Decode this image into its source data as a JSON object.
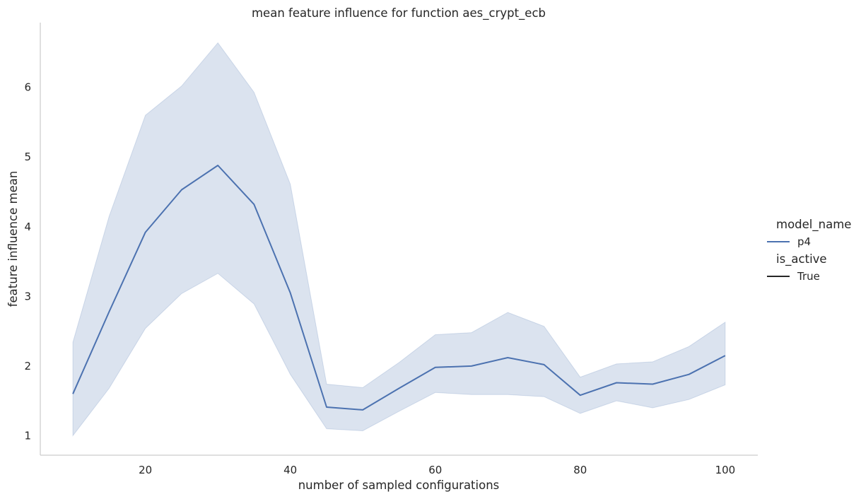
{
  "chart_data": {
    "type": "line",
    "title": "mean feature influence for function aes_crypt_ecb",
    "xlabel": "number of sampled configurations",
    "ylabel": "feature influence mean",
    "xlim": [
      5.5,
      104.5
    ],
    "ylim": [
      0.72,
      6.93
    ],
    "xticks": [
      20,
      40,
      60,
      80,
      100
    ],
    "yticks": [
      1,
      2,
      3,
      4,
      5,
      6
    ],
    "grid": false,
    "legend": {
      "placement": "right",
      "groups": [
        {
          "title": "model_name",
          "entries": [
            {
              "label": "p4",
              "color": "#4c72b0"
            }
          ]
        },
        {
          "title": "is_active",
          "entries": [
            {
              "label": "True",
              "color": "#262626"
            }
          ]
        }
      ]
    },
    "series": [
      {
        "name": "p4",
        "color": "#4c72b0",
        "band_color": "#4c72b0",
        "x": [
          10,
          15,
          20,
          25,
          30,
          35,
          40,
          45,
          50,
          55,
          60,
          65,
          70,
          75,
          80,
          85,
          90,
          95,
          100
        ],
        "y": [
          1.6,
          2.78,
          3.92,
          4.53,
          4.88,
          4.32,
          3.05,
          1.41,
          1.37,
          1.68,
          1.98,
          2.0,
          2.12,
          2.02,
          1.58,
          1.76,
          1.74,
          1.88,
          2.15
        ],
        "y_lower": [
          1.0,
          1.68,
          2.54,
          3.04,
          3.33,
          2.89,
          1.88,
          1.1,
          1.07,
          1.35,
          1.62,
          1.59,
          1.59,
          1.56,
          1.32,
          1.5,
          1.4,
          1.52,
          1.73
        ],
        "y_upper": [
          2.34,
          4.15,
          5.6,
          6.02,
          6.64,
          5.93,
          4.61,
          1.74,
          1.69,
          2.05,
          2.45,
          2.48,
          2.77,
          2.57,
          1.84,
          2.03,
          2.06,
          2.28,
          2.63
        ]
      }
    ]
  }
}
